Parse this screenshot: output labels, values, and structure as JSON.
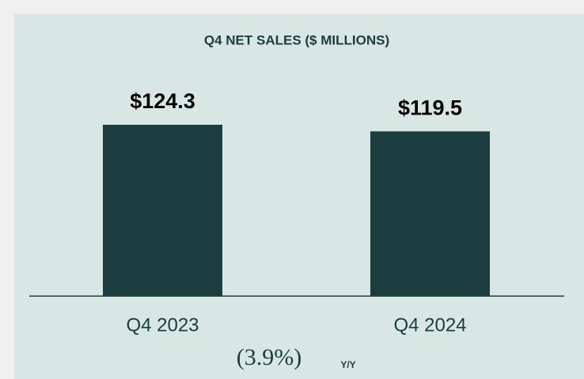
{
  "chart_data": {
    "type": "bar",
    "title": "Q4 NET SALES ($ MILLIONS)",
    "categories": [
      "Q4 2023",
      "Q4 2024"
    ],
    "values": [
      124.3,
      119.5
    ],
    "value_labels": [
      "$124.3",
      "$119.5"
    ],
    "color": "#1b3d40",
    "annotations": [
      "(3.9%)",
      "Y/Y"
    ]
  }
}
